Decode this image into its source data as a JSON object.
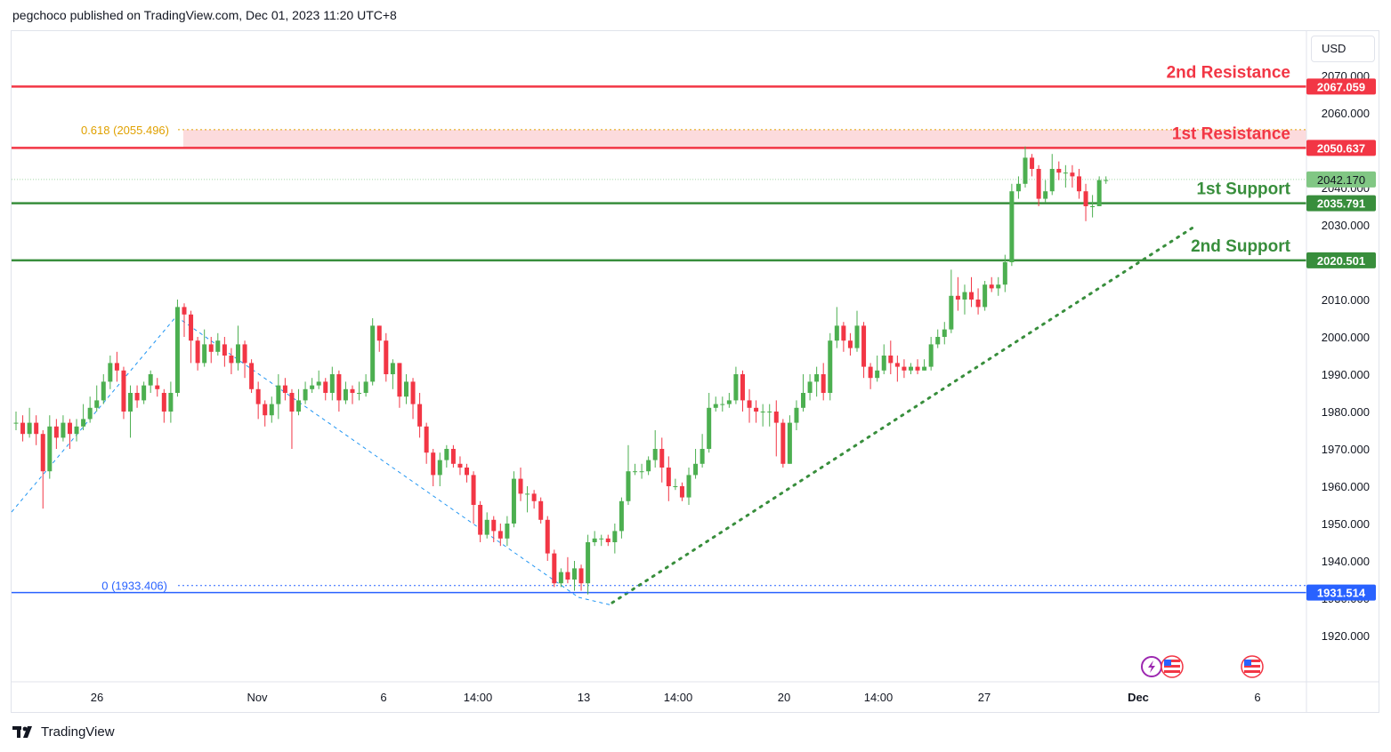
{
  "header": {
    "publisher": "pegchoco published on TradingView.com, Dec 01, 2023 11:20 UTC+8"
  },
  "footer": {
    "brand": "TradingView",
    "logo_icon": "tradingview-logo-icon"
  },
  "price_scale": {
    "currency": "USD"
  },
  "colors": {
    "resistance": "#f23645",
    "support": "#388e3c",
    "zero_level": "#2962ff",
    "fib": "#e0a100",
    "bull": "#4caf50",
    "bear": "#f23645",
    "current": "#81c784"
  },
  "chart_data": {
    "type": "candlestick",
    "y_ticks": [
      "2070.000",
      "2060.000",
      "2050.000",
      "2040.000",
      "2030.000",
      "2010.000",
      "2000.000",
      "1990.000",
      "1980.000",
      "1970.000",
      "1960.000",
      "1950.000",
      "1940.000",
      "1930.000",
      "1920.000"
    ],
    "x_ticks": [
      "26",
      "Nov",
      "6",
      "14:00",
      "13",
      "14:00",
      "20",
      "14:00",
      "27",
      "Dec",
      "6"
    ],
    "levels": [
      {
        "label": "2nd Resistance",
        "value": 2067.059,
        "tag": "2067.059",
        "kind": "resistance"
      },
      {
        "label": "1st Resistance",
        "value": 2050.637,
        "tag": "2050.637",
        "kind": "resistance"
      },
      {
        "label": "1st Support",
        "value": 2035.791,
        "tag": "2035.791",
        "kind": "support"
      },
      {
        "label": "2nd Support",
        "value": 2020.501,
        "tag": "2020.501",
        "kind": "support"
      },
      {
        "label": "",
        "value": 1931.514,
        "tag": "1931.514",
        "kind": "zero"
      }
    ],
    "fib": [
      {
        "label": "0.618 (2055.496)",
        "value": 2055.496
      },
      {
        "label": "0 (1933.406)",
        "value": 1933.406
      }
    ],
    "current_price": {
      "value": 2042.17,
      "tag": "2042.170"
    },
    "candles": [
      [
        1977,
        1977,
        1980,
        1975
      ],
      [
        1977,
        1974,
        1979,
        1972
      ],
      [
        1974,
        1977,
        1981,
        1973
      ],
      [
        1977,
        1974,
        1979,
        1971
      ],
      [
        1974,
        1964,
        1975,
        1954
      ],
      [
        1964,
        1976,
        1979,
        1962
      ],
      [
        1976,
        1973,
        1978,
        1970
      ],
      [
        1973,
        1977,
        1979,
        1972
      ],
      [
        1977,
        1974,
        1978,
        1970
      ],
      [
        1974,
        1976,
        1978,
        1972
      ],
      [
        1976,
        1978,
        1982,
        1975
      ],
      [
        1978,
        1981,
        1984,
        1977
      ],
      [
        1981,
        1983,
        1987,
        1980
      ],
      [
        1983,
        1988,
        1990,
        1982
      ],
      [
        1988,
        1993,
        1995,
        1986
      ],
      [
        1993,
        1991,
        1996,
        1988
      ],
      [
        1991,
        1980,
        1992,
        1978
      ],
      [
        1980,
        1985,
        1987,
        1973
      ],
      [
        1985,
        1983,
        1987,
        1981
      ],
      [
        1983,
        1987,
        1988,
        1982
      ],
      [
        1987,
        1990,
        1991,
        1985
      ],
      [
        1987,
        1986,
        1989,
        1984
      ],
      [
        1985,
        1980,
        1986,
        1977
      ],
      [
        1980,
        1985,
        1988,
        1977
      ],
      [
        1985,
        2008,
        2010,
        1984
      ],
      [
        2008,
        2006,
        2009,
        2000
      ],
      [
        2006,
        1999,
        2007,
        1993
      ],
      [
        1999,
        1993,
        2000,
        1991
      ],
      [
        1993,
        1998,
        2002,
        1992
      ],
      [
        1998,
        1996,
        2000,
        1993
      ],
      [
        1996,
        1999,
        2001,
        1995
      ],
      [
        1998,
        1995,
        2000,
        1992
      ],
      [
        1995,
        1993,
        1997,
        1990
      ],
      [
        1993,
        1998,
        2003,
        1991
      ],
      [
        1998,
        1993,
        1999,
        1989
      ],
      [
        1993,
        1986,
        1994,
        1985
      ],
      [
        1986,
        1982,
        1988,
        1978
      ],
      [
        1982,
        1979,
        1983,
        1976
      ],
      [
        1979,
        1982,
        1984,
        1977
      ],
      [
        1982,
        1987,
        1990,
        1978
      ],
      [
        1987,
        1985,
        1989,
        1983
      ],
      [
        1985,
        1980,
        1986,
        1970
      ],
      [
        1980,
        1983,
        1986,
        1979
      ],
      [
        1983,
        1986,
        1988,
        1982
      ],
      [
        1986,
        1987,
        1989,
        1985
      ],
      [
        1987,
        1988,
        1991,
        1986
      ],
      [
        1988,
        1985,
        1989,
        1983
      ],
      [
        1985,
        1990,
        1992,
        1983
      ],
      [
        1990,
        1983,
        1991,
        1980
      ],
      [
        1983,
        1986,
        1988,
        1982
      ],
      [
        1986,
        1985,
        1987,
        1982
      ],
      [
        1985,
        1985,
        1988,
        1983
      ],
      [
        1985,
        1988,
        1990,
        1984
      ],
      [
        1988,
        2003,
        2005,
        1987
      ],
      [
        2003,
        1999,
        2003,
        1996
      ],
      [
        1999,
        1990,
        2001,
        1988
      ],
      [
        1990,
        1993,
        1994,
        1986
      ],
      [
        1993,
        1984,
        1993,
        1981
      ],
      [
        1984,
        1988,
        1990,
        1982
      ],
      [
        1988,
        1982,
        1989,
        1978
      ],
      [
        1982,
        1976,
        1985,
        1973
      ],
      [
        1976,
        1969,
        1977,
        1966
      ],
      [
        1969,
        1963,
        1970,
        1960
      ],
      [
        1963,
        1967,
        1969,
        1960
      ],
      [
        1967,
        1970,
        1971,
        1965
      ],
      [
        1970,
        1966,
        1971,
        1965
      ],
      [
        1966,
        1965,
        1968,
        1963
      ],
      [
        1965,
        1963,
        1966,
        1961
      ],
      [
        1963,
        1955,
        1964,
        1950
      ],
      [
        1955,
        1947,
        1956,
        1945
      ],
      [
        1947,
        1951,
        1953,
        1946
      ],
      [
        1951,
        1948,
        1952,
        1945
      ],
      [
        1948,
        1946,
        1950,
        1944
      ],
      [
        1946,
        1950,
        1952,
        1944
      ],
      [
        1950,
        1962,
        1964,
        1949
      ],
      [
        1962,
        1958,
        1965,
        1956
      ],
      [
        1958,
        1958,
        1960,
        1953
      ],
      [
        1958,
        1956,
        1959,
        1954
      ],
      [
        1956,
        1951,
        1957,
        1950
      ],
      [
        1951,
        1942,
        1952,
        1940
      ],
      [
        1942,
        1934,
        1943,
        1933
      ],
      [
        1934,
        1937,
        1938,
        1933
      ],
      [
        1937,
        1935,
        1941,
        1934
      ],
      [
        1935,
        1938,
        1940,
        1932
      ],
      [
        1938,
        1934,
        1939,
        1932
      ],
      [
        1934,
        1945,
        1947,
        1931
      ],
      [
        1945,
        1946,
        1948,
        1944
      ],
      [
        1946,
        1946,
        1947,
        1944
      ],
      [
        1946,
        1945,
        1947,
        1944
      ],
      [
        1945,
        1948,
        1950,
        1942
      ],
      [
        1948,
        1956,
        1957,
        1946
      ],
      [
        1956,
        1964,
        1971,
        1955
      ],
      [
        1964,
        1964,
        1966,
        1963
      ],
      [
        1964,
        1964,
        1966,
        1962
      ],
      [
        1964,
        1967,
        1968,
        1963
      ],
      [
        1967,
        1970,
        1975,
        1965
      ],
      [
        1970,
        1965,
        1973,
        1961
      ],
      [
        1965,
        1960,
        1968,
        1956
      ],
      [
        1960,
        1960,
        1962,
        1959
      ],
      [
        1960,
        1957,
        1961,
        1956
      ],
      [
        1957,
        1963,
        1965,
        1955
      ],
      [
        1963,
        1966,
        1970,
        1962
      ],
      [
        1966,
        1970,
        1974,
        1965
      ],
      [
        1970,
        1981,
        1985,
        1969
      ],
      [
        1981,
        1982,
        1984,
        1980
      ],
      [
        1982,
        1982,
        1984,
        1980
      ],
      [
        1982,
        1983,
        1985,
        1981
      ],
      [
        1983,
        1990,
        1992,
        1982
      ],
      [
        1990,
        1983,
        1991,
        1980
      ],
      [
        1983,
        1981,
        1986,
        1977
      ],
      [
        1981,
        1980,
        1983,
        1977
      ],
      [
        1980,
        1980,
        1982,
        1976
      ],
      [
        1980,
        1980,
        1982,
        1976
      ],
      [
        1980,
        1977,
        1983,
        1968
      ],
      [
        1977,
        1966,
        1978,
        1965
      ],
      [
        1966,
        1977,
        1979,
        1966
      ],
      [
        1977,
        1981,
        1983,
        1975
      ],
      [
        1981,
        1985,
        1990,
        1980
      ],
      [
        1985,
        1988,
        1990,
        1983
      ],
      [
        1988,
        1990,
        1992,
        1984
      ],
      [
        1990,
        1985,
        1993,
        1983
      ],
      [
        1985,
        1999,
        2001,
        1983
      ],
      [
        1999,
        2003,
        2008,
        1997
      ],
      [
        2003,
        1999,
        2004,
        1996
      ],
      [
        1999,
        1997,
        2001,
        1995
      ],
      [
        1997,
        2003,
        2007,
        1996
      ],
      [
        2003,
        1992,
        2004,
        1989
      ],
      [
        1992,
        1989,
        1993,
        1986
      ],
      [
        1989,
        1991,
        1995,
        1988
      ],
      [
        1991,
        1995,
        1998,
        1990
      ],
      [
        1995,
        1993,
        1999,
        1990
      ],
      [
        1993,
        1992,
        1995,
        1988
      ],
      [
        1992,
        1991,
        1994,
        1989
      ],
      [
        1991,
        1992,
        1993,
        1990
      ],
      [
        1992,
        1991,
        1994,
        1990
      ],
      [
        1991,
        1992,
        1994,
        1991
      ],
      [
        1992,
        1998,
        2000,
        1991
      ],
      [
        1998,
        2000,
        2002,
        1997
      ],
      [
        2000,
        2002,
        2004,
        1998
      ],
      [
        2002,
        2011,
        2018,
        2001
      ],
      [
        2011,
        2010,
        2016,
        2007
      ],
      [
        2010,
        2012,
        2014,
        2006
      ],
      [
        2012,
        2010,
        2016,
        2008
      ],
      [
        2010,
        2008,
        2013,
        2006
      ],
      [
        2008,
        2014,
        2015,
        2007
      ],
      [
        2014,
        2013,
        2016,
        2012
      ],
      [
        2013,
        2014,
        2016,
        2011
      ],
      [
        2014,
        2020,
        2022,
        2012
      ],
      [
        2020,
        2039,
        2041,
        2019
      ],
      [
        2039,
        2041,
        2043,
        2037
      ],
      [
        2041,
        2048,
        2051,
        2040
      ],
      [
        2048,
        2045,
        2049,
        2043
      ],
      [
        2045,
        2037,
        2046,
        2035
      ],
      [
        2037,
        2039,
        2042,
        2036
      ],
      [
        2039,
        2045,
        2049,
        2038
      ],
      [
        2045,
        2044,
        2047,
        2042
      ],
      [
        2044,
        2044,
        2046,
        2040
      ],
      [
        2044,
        2043,
        2046,
        2040
      ],
      [
        2043,
        2039,
        2045,
        2037
      ],
      [
        2039,
        2035,
        2041,
        2031
      ],
      [
        2035,
        2035,
        2038,
        2032
      ],
      [
        2035,
        2042,
        2043,
        2035
      ],
      [
        2042,
        2042,
        2043,
        2041
      ]
    ]
  }
}
